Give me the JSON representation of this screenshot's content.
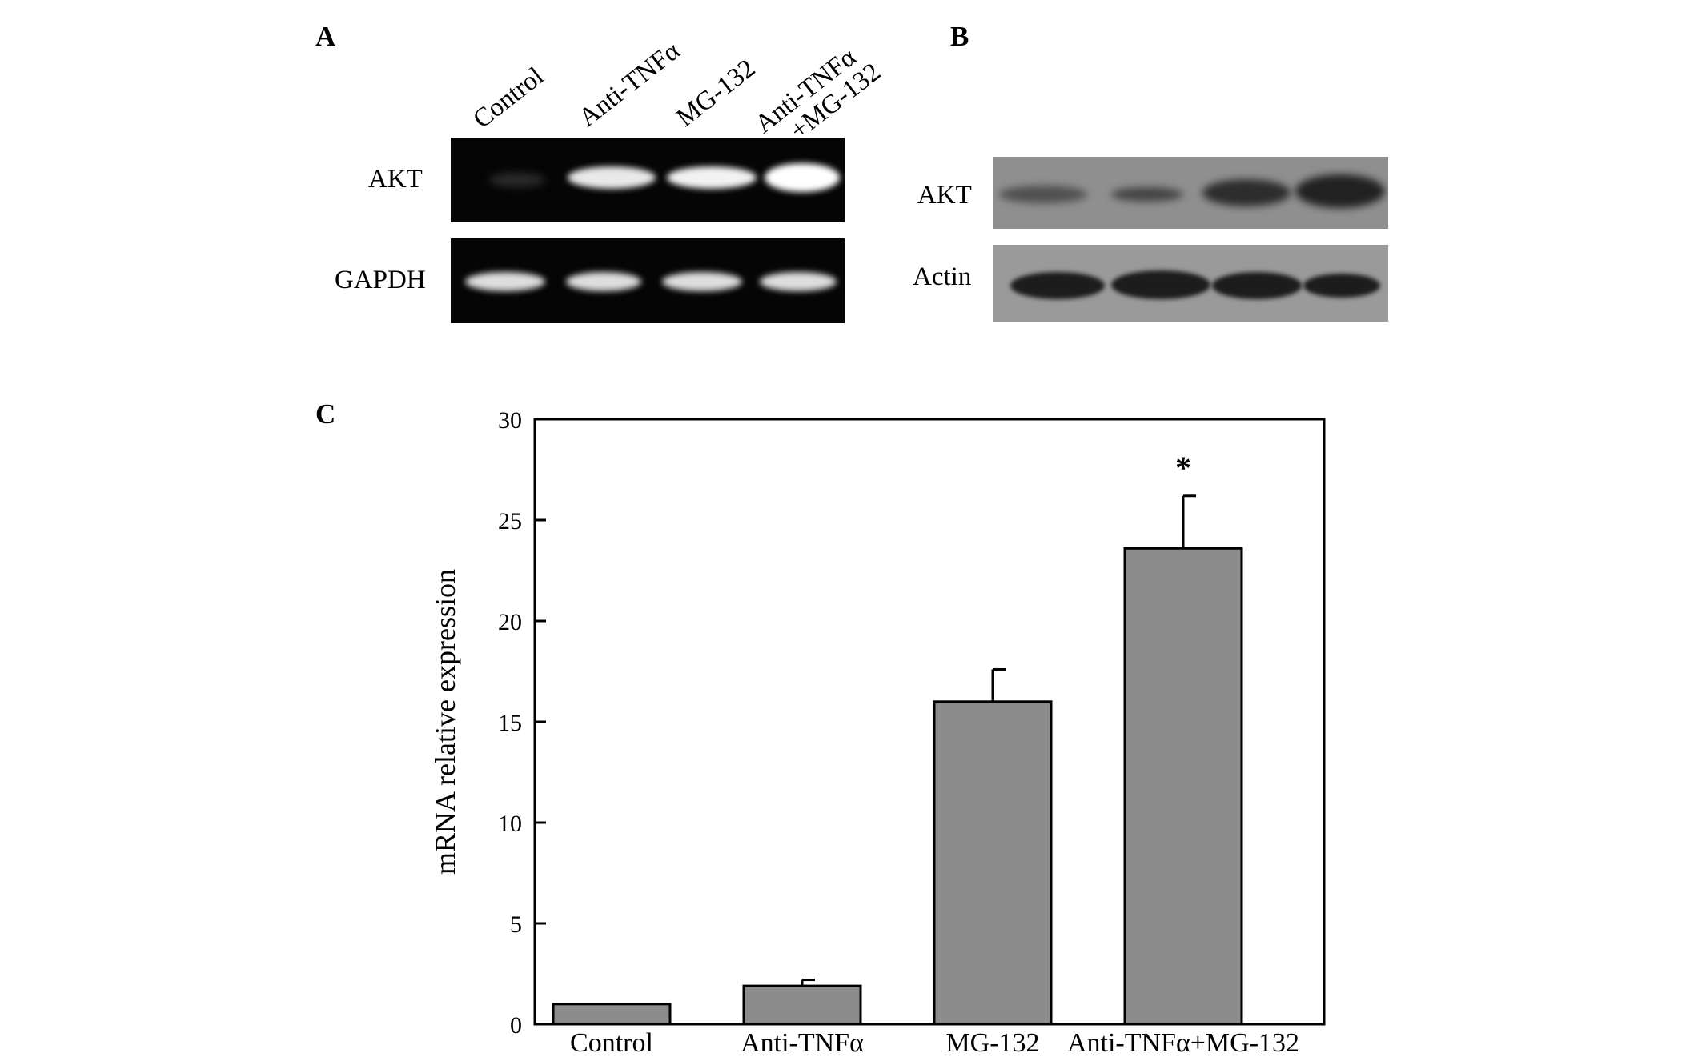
{
  "panels": {
    "a": {
      "letter": "A",
      "lanes": [
        "Control",
        "Anti-TNFα",
        "MG-132",
        "Anti-TNFα",
        "+MG-132"
      ],
      "rows": [
        "AKT",
        "GAPDH"
      ]
    },
    "b": {
      "letter": "B",
      "rows": [
        "AKT",
        "Actin"
      ]
    },
    "c": {
      "letter": "C"
    }
  },
  "chart_data": {
    "type": "bar",
    "categories": [
      "Control",
      "Anti-TNFα",
      "MG-132",
      "Anti-TNFα+MG-132"
    ],
    "values": [
      1.0,
      1.9,
      16.0,
      23.6
    ],
    "errors": [
      0.0,
      0.3,
      1.6,
      2.6
    ],
    "annotations": [
      "",
      "",
      "",
      "*"
    ],
    "ylabel": "mRNA relative expression",
    "xlabel": "",
    "ylim": [
      0,
      30
    ],
    "yticks": [
      0,
      5,
      10,
      15,
      20,
      25,
      30
    ],
    "bar_color": "#8c8c8c",
    "grid": false
  }
}
